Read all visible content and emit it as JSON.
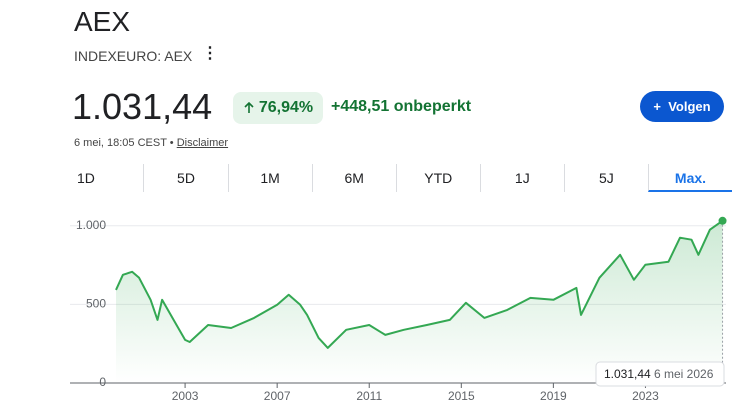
{
  "header": {
    "title": "AEX",
    "ticker": "INDEXEURO: AEX",
    "price": "1.031,44",
    "change_percent": "76,94%",
    "change_absolute": "+448,51 onbeperkt",
    "timestamp": "6 mei, 18:05 CEST",
    "separator": "•",
    "disclaimer": "Disclaimer",
    "follow": "Volgen"
  },
  "tabs": {
    "labels": [
      "1D",
      "5D",
      "1M",
      "6M",
      "YTD",
      "1J",
      "5J",
      "Max."
    ],
    "selected": 7
  },
  "chart_data": {
    "type": "line",
    "color": "#34a853",
    "x": [
      2000.0,
      2000.3,
      2000.7,
      2001.0,
      2001.5,
      2001.8,
      2002.0,
      2002.5,
      2003.0,
      2003.2,
      2004.0,
      2005.0,
      2006.0,
      2007.0,
      2007.5,
      2008.0,
      2008.3,
      2008.8,
      2009.2,
      2010.0,
      2011.0,
      2011.7,
      2012.5,
      2013.5,
      2014.5,
      2015.2,
      2016.0,
      2017.0,
      2018.0,
      2019.0,
      2020.0,
      2020.2,
      2021.0,
      2021.9,
      2022.5,
      2023.0,
      2024.0,
      2024.5,
      2025.0,
      2025.3,
      2025.8,
      2026.35
    ],
    "values": [
      592,
      688,
      707,
      669,
      529,
      401,
      529,
      401,
      274,
      261,
      369,
      350,
      414,
      497,
      561,
      497,
      433,
      287,
      223,
      338,
      369,
      306,
      338,
      369,
      401,
      510,
      414,
      465,
      541,
      529,
      605,
      433,
      669,
      815,
      656,
      752,
      771,
      924,
      911,
      815,
      975,
      1031.44
    ],
    "xlim": [
      1998,
      2026.5
    ],
    "xticks": [
      2003,
      2007,
      2011,
      2015,
      2019,
      2023
    ],
    "ylim": [
      0,
      1100
    ],
    "yticks": [
      0,
      500,
      {
        "value": 1000,
        "label": "1.000"
      }
    ],
    "grid": true,
    "tooltip": {
      "value": "1.031,44",
      "date": "6 mei 2026"
    }
  }
}
